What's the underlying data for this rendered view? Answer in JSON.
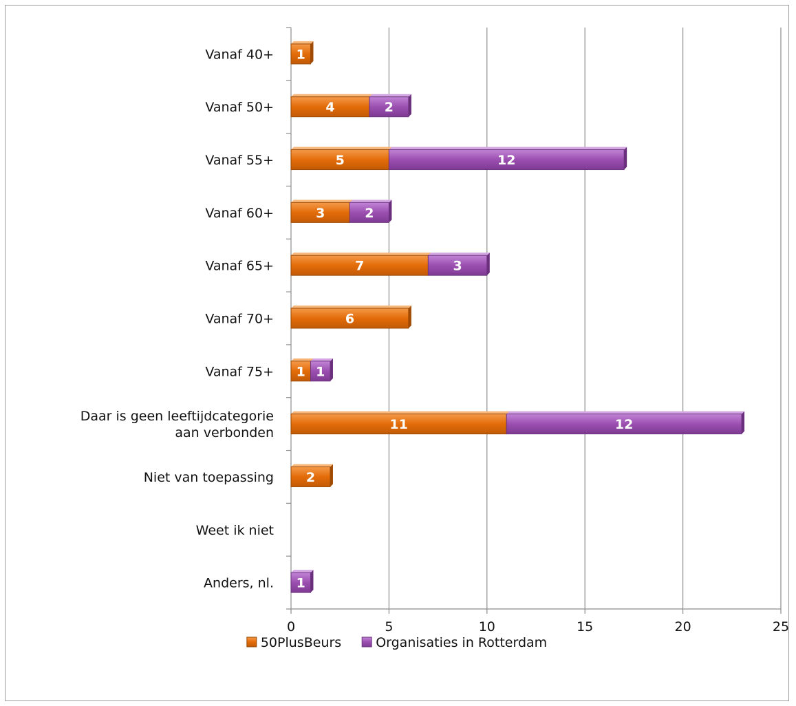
{
  "chart_data": {
    "type": "bar",
    "orientation": "horizontal",
    "stacked": true,
    "categories": [
      "Vanaf 40+",
      "Vanaf 50+",
      "Vanaf 55+",
      "Vanaf 60+",
      "Vanaf 65+",
      "Vanaf 70+",
      "Vanaf 75+",
      [
        "Daar is geen leeftijdcategorie",
        "aan verbonden"
      ],
      "Niet van toepassing",
      "Weet ik niet",
      "Anders, nl."
    ],
    "series": [
      {
        "name": "50PlusBeurs",
        "color": "#e36c09",
        "values": [
          1,
          4,
          5,
          3,
          7,
          6,
          1,
          11,
          2,
          0,
          0
        ]
      },
      {
        "name": "Organisaties in Rotterdam",
        "color": "#9b4fb0",
        "values": [
          0,
          2,
          12,
          2,
          3,
          0,
          1,
          12,
          0,
          0,
          1
        ]
      }
    ],
    "xlim": [
      0,
      25
    ],
    "xticks": [
      0,
      5,
      10,
      15,
      20,
      25
    ],
    "grid": "vertical",
    "legend": "bottom"
  }
}
